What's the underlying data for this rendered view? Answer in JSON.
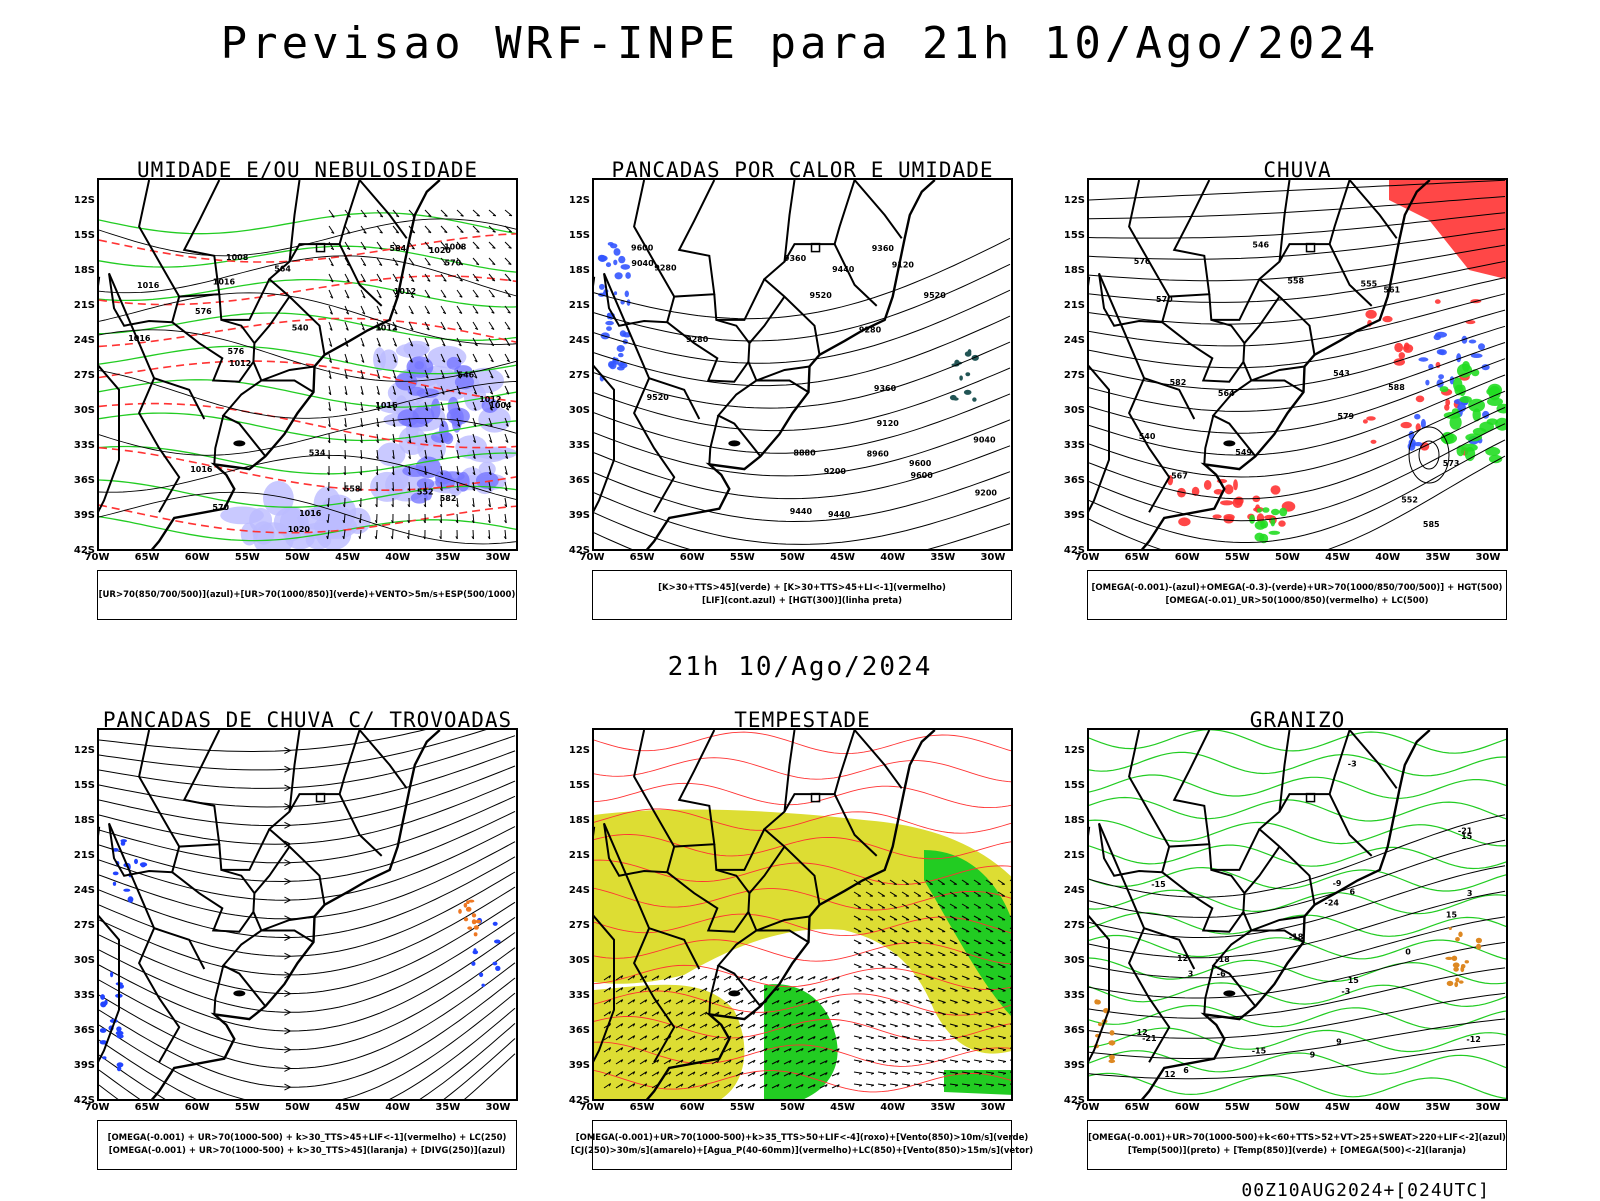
{
  "title": "Previsao WRF-INPE  para 21h 10/Ago/2024",
  "mid_title": "21h 10/Ago/2024",
  "footer": "00Z10AUG2024+[024UTC]",
  "lat_ticks": [
    "12S",
    "15S",
    "18S",
    "21S",
    "24S",
    "27S",
    "30S",
    "33S",
    "36S",
    "39S",
    "42S"
  ],
  "lon_ticks": [
    "70W",
    "65W",
    "60W",
    "55W",
    "50W",
    "45W",
    "40W",
    "35W",
    "30W"
  ],
  "panels": [
    {
      "title": "UMIDADE E/OU NEBULOSIDADE",
      "legend": [
        "[UR>70(850/700/500)](azul)+[UR>70(1000/850)](verde)+VENTO>5m/s+ESP(500/1000)"
      ],
      "labels": [
        "1016",
        "1016",
        "1012",
        "1016",
        "1020",
        "1020",
        "1016",
        "1012",
        "1008",
        "1004",
        "1012",
        "1008",
        "1012",
        "1016",
        "1016",
        "570",
        "576",
        "564",
        "582",
        "558",
        "552",
        "546",
        "540",
        "534",
        "584",
        "576",
        "570"
      ],
      "colors": {
        "contour_black": "#000000",
        "contour_red": "#ff3333",
        "green": "#22cc22",
        "blue": "#7777ff",
        "blue_light": "#bbbbff"
      }
    },
    {
      "title": "PANCADAS POR CALOR E UMIDADE",
      "legend": [
        "[K>30+TTS>45](verde) + [K>30+TTS>45+LI<-1](vermelho)",
        "[LIF](cont.azul) + [HGT(300)](linha preta)"
      ],
      "labels": [
        "9520",
        "9600",
        "9600",
        "9520",
        "9440",
        "9360",
        "9440",
        "9360",
        "9280",
        "9520",
        "9600",
        "9440",
        "9360",
        "9280",
        "9200",
        "9120",
        "9040",
        "8960",
        "9200",
        "9120",
        "9040",
        "8880",
        "9280"
      ],
      "colors": {
        "contour_black": "#000000",
        "blue": "#3355ff",
        "teal": "#225555"
      }
    },
    {
      "title": "CHUVA",
      "legend": [
        "[OMEGA(-0.001)-(azul)+OMEGA(-0.3)-(verde)+UR>70(1000/850/700/500)] + HGT(500)",
        "[OMEGA(-0.01)_UR>50(1000/850)(vermelho) + LC(500)"
      ],
      "labels": [
        "585",
        "582",
        "579",
        "576",
        "573",
        "570",
        "567",
        "564",
        "561",
        "558",
        "555",
        "552",
        "549",
        "546",
        "543",
        "540",
        "588"
      ],
      "colors": {
        "red": "#ff3333",
        "green": "#22dd22",
        "blue": "#3355ff",
        "contour_black": "#000000"
      }
    },
    {
      "title": "PANCADAS DE CHUVA C/ TROVOADAS",
      "legend": [
        "[OMEGA(-0.001) + UR>70(1000-500) + k>30_TTS>45+LIF<-1](vermelho) + LC(250)",
        "[OMEGA(-0.001) + UR>70(1000-500) + k>30_TTS>45](laranja) + [DIVG(250)](azul)"
      ],
      "labels": [],
      "colors": {
        "stream": "#000000",
        "blue": "#2244ff",
        "orange": "#ee7722"
      }
    },
    {
      "title": "TEMPESTADE",
      "legend": [
        "[OMEGA(-0.001)+UR>70(1000-500)+k>35_TTS>50+LIF<-4](roxo)+[Vento(850)>10m/s](verde)",
        "[CJ(250)>30m/s](amarelo)+[Agua_P(40-60mm)](vermelho)+LC(850)+[Vento(850)>15m/s](vetor)"
      ],
      "labels": [],
      "colors": {
        "yellow": "#dddd33",
        "green": "#22cc22",
        "red": "#ff3333",
        "stream": "#000000"
      }
    },
    {
      "title": "GRANIZO",
      "legend": [
        "[OMEGA(-0.001)+UR>70(1000-500)+k<60+TTS>52+VT>25+SWEAT>220+LIF<-2](azul)",
        "[Temp(500)](preto) + [Temp(850)](verde) + [OMEGA(500)<-2](laranja)"
      ],
      "labels": [
        "15",
        "12",
        "9",
        "6",
        "3",
        "0",
        "-3",
        "-6",
        "-9",
        "-12",
        "-15",
        "-18",
        "-21",
        "-24",
        "12",
        "15",
        "3",
        "-3",
        "6",
        "9",
        "15",
        "12",
        "-15",
        "-18",
        "-21"
      ],
      "colors": {
        "green": "#22cc22",
        "contour_black": "#000000",
        "orange": "#dd8822"
      }
    }
  ]
}
